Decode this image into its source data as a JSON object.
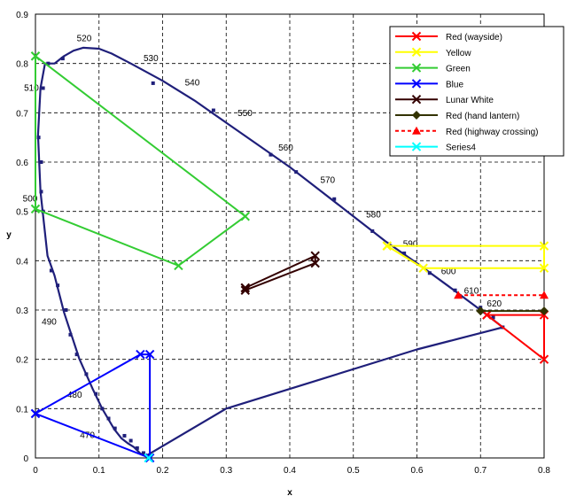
{
  "chart_data": {
    "type": "scatter",
    "xlabel": "x",
    "ylabel": "y",
    "xlim": [
      0,
      0.8
    ],
    "ylim": [
      0,
      0.9
    ],
    "xticks": [
      0,
      0.1,
      0.2,
      0.3,
      0.4,
      0.5,
      0.6,
      0.7,
      0.8
    ],
    "xtick_labels": [
      "0",
      "0.1",
      "0.2",
      "0.3",
      "0.4",
      "0.5",
      "0.6",
      "0.7",
      "0.8"
    ],
    "yticks": [
      0,
      0.1,
      0.2,
      0.3,
      0.4,
      0.5,
      0.6,
      0.7,
      0.8,
      0.9
    ],
    "ytick_labels": [
      "0",
      "0.1",
      "0.2",
      "0.3",
      "0.4",
      "0.5",
      "0.6",
      "0.7",
      "0.8",
      "0.9"
    ],
    "grid": true,
    "legend_position": "top-right",
    "locus": {
      "color": "#1f1f7a",
      "points": [
        [
          0.175,
          0.005
        ],
        [
          0.172,
          0.005
        ],
        [
          0.165,
          0.009
        ],
        [
          0.155,
          0.022
        ],
        [
          0.145,
          0.03
        ],
        [
          0.135,
          0.04
        ],
        [
          0.124,
          0.058
        ],
        [
          0.105,
          0.1
        ],
        [
          0.09,
          0.14
        ],
        [
          0.069,
          0.201
        ],
        [
          0.045,
          0.295
        ],
        [
          0.03,
          0.37
        ],
        [
          0.019,
          0.41
        ],
        [
          0.008,
          0.54
        ],
        [
          0.004,
          0.655
        ],
        [
          0.008,
          0.75
        ],
        [
          0.015,
          0.8
        ],
        [
          0.03,
          0.8
        ],
        [
          0.045,
          0.815
        ],
        [
          0.06,
          0.826
        ],
        [
          0.075,
          0.832
        ],
        [
          0.1,
          0.83
        ],
        [
          0.12,
          0.82
        ],
        [
          0.15,
          0.8
        ],
        [
          0.2,
          0.765
        ],
        [
          0.25,
          0.725
        ],
        [
          0.3,
          0.68
        ],
        [
          0.35,
          0.635
        ],
        [
          0.4,
          0.59
        ],
        [
          0.45,
          0.54
        ],
        [
          0.5,
          0.49
        ],
        [
          0.55,
          0.44
        ],
        [
          0.6,
          0.395
        ],
        [
          0.65,
          0.348
        ],
        [
          0.7,
          0.3
        ],
        [
          0.735,
          0.265
        ],
        [
          0.72,
          0.26
        ],
        [
          0.6,
          0.22
        ],
        [
          0.45,
          0.16
        ],
        [
          0.3,
          0.1
        ],
        [
          0.175,
          0.005
        ]
      ],
      "dots": [
        [
          0.012,
          0.5
        ],
        [
          0.009,
          0.6
        ],
        [
          0.005,
          0.65
        ],
        [
          0.012,
          0.75
        ],
        [
          0.02,
          0.8
        ],
        [
          0.043,
          0.81
        ],
        [
          0.009,
          0.54
        ],
        [
          0.025,
          0.38
        ],
        [
          0.035,
          0.35
        ],
        [
          0.048,
          0.3
        ],
        [
          0.055,
          0.25
        ],
        [
          0.065,
          0.21
        ],
        [
          0.08,
          0.17
        ],
        [
          0.095,
          0.13
        ],
        [
          0.105,
          0.1
        ],
        [
          0.115,
          0.08
        ],
        [
          0.125,
          0.06
        ],
        [
          0.14,
          0.045
        ],
        [
          0.15,
          0.035
        ],
        [
          0.16,
          0.02
        ],
        [
          0.17,
          0.01
        ],
        [
          0.185,
          0.76
        ],
        [
          0.28,
          0.705
        ],
        [
          0.37,
          0.615
        ],
        [
          0.41,
          0.58
        ],
        [
          0.47,
          0.525
        ],
        [
          0.53,
          0.46
        ],
        [
          0.58,
          0.415
        ],
        [
          0.62,
          0.375
        ],
        [
          0.66,
          0.34
        ],
        [
          0.7,
          0.305
        ],
        [
          0.72,
          0.285
        ],
        [
          0.735,
          0.265
        ]
      ],
      "wavelength_labels": [
        {
          "text": "470",
          "x": 0.07,
          "y": 0.04
        },
        {
          "text": "480",
          "x": 0.05,
          "y": 0.122
        },
        {
          "text": "490",
          "x": 0.01,
          "y": 0.27
        },
        {
          "text": "500",
          "x": -0.02,
          "y": 0.52
        },
        {
          "text": "510",
          "x": -0.018,
          "y": 0.745
        },
        {
          "text": "520",
          "x": 0.065,
          "y": 0.845
        },
        {
          "text": "530",
          "x": 0.17,
          "y": 0.805
        },
        {
          "text": "540",
          "x": 0.235,
          "y": 0.755
        },
        {
          "text": "550",
          "x": 0.318,
          "y": 0.693
        },
        {
          "text": "560",
          "x": 0.382,
          "y": 0.623
        },
        {
          "text": "570",
          "x": 0.448,
          "y": 0.558
        },
        {
          "text": "580",
          "x": 0.52,
          "y": 0.488
        },
        {
          "text": "590",
          "x": 0.578,
          "y": 0.428
        },
        {
          "text": "600",
          "x": 0.638,
          "y": 0.373
        },
        {
          "text": "610",
          "x": 0.674,
          "y": 0.333
        },
        {
          "text": "620",
          "x": 0.71,
          "y": 0.307
        }
      ]
    },
    "series": [
      {
        "name": "Red (wayside)",
        "color": "#ff0000",
        "marker": "x",
        "dash": false,
        "points": [
          [
            0.71,
            0.29
          ],
          [
            0.8,
            0.29
          ],
          [
            0.8,
            0.2
          ],
          [
            0.71,
            0.29
          ]
        ]
      },
      {
        "name": "Yellow",
        "color": "#ffff00",
        "marker": "x",
        "dash": false,
        "points": [
          [
            0.553,
            0.43
          ],
          [
            0.8,
            0.43
          ],
          [
            0.8,
            0.385
          ],
          [
            0.61,
            0.385
          ],
          [
            0.553,
            0.43
          ]
        ]
      },
      {
        "name": "Green",
        "color": "#33cc33",
        "marker": "x",
        "dash": false,
        "points": [
          [
            0,
            0.815
          ],
          [
            0.33,
            0.49
          ],
          [
            0.225,
            0.39
          ],
          [
            0,
            0.505
          ],
          [
            0,
            0.815
          ]
        ]
      },
      {
        "name": "Blue",
        "color": "#0000ff",
        "marker": "x",
        "dash": false,
        "points": [
          [
            0,
            0.09
          ],
          [
            0.165,
            0.21
          ],
          [
            0.18,
            0.21
          ],
          [
            0.18,
            0.0
          ],
          [
            0,
            0.09
          ]
        ]
      },
      {
        "name": "Lunar White",
        "color": "#330000",
        "marker": "x",
        "dash": false,
        "points": [
          [
            0.33,
            0.345
          ],
          [
            0.44,
            0.41
          ],
          [
            0.44,
            0.395
          ],
          [
            0.33,
            0.34
          ],
          [
            0.33,
            0.345
          ]
        ]
      },
      {
        "name": "Red (hand lantern)",
        "color": "#333300",
        "marker": "diamond",
        "dash": false,
        "points": [
          [
            0.7,
            0.298
          ],
          [
            0.8,
            0.298
          ]
        ]
      },
      {
        "name": "Red (highway crossing)",
        "color": "#ff0000",
        "marker": "triangle",
        "dash": true,
        "points": [
          [
            0.665,
            0.33
          ],
          [
            0.8,
            0.33
          ]
        ]
      },
      {
        "name": "Series4",
        "color": "#00ffff",
        "marker": "x",
        "dash": false,
        "points": [
          [
            0.178,
            0.0
          ]
        ]
      }
    ]
  }
}
